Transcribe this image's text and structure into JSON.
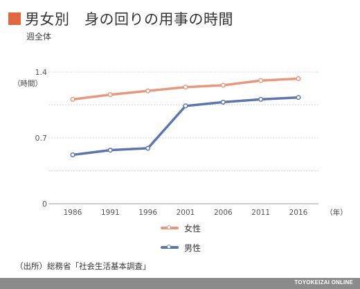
{
  "header": {
    "title": "男女別　身の回りの用事の時間",
    "subtitle": "週全体",
    "accent_color": "#e0673f"
  },
  "source_note": "（出所）総務省「社会生活基本調査」",
  "footer": {
    "brand": "TOYOKEIZAI ONLINE"
  },
  "chart_data": {
    "type": "line",
    "x": [
      "1986",
      "1991",
      "1996",
      "2001",
      "2006",
      "2011",
      "2016"
    ],
    "ylabel": "（時間）",
    "xlabel": "（年）",
    "ylim": [
      0,
      1.4
    ],
    "yticks": [
      "0",
      "0.7",
      "1.4"
    ],
    "grid": true,
    "legend_position": "bottom-center",
    "series": [
      {
        "name": "女性",
        "color": "#e9977a",
        "values": [
          1.11,
          1.16,
          1.2,
          1.24,
          1.26,
          1.31,
          1.33
        ]
      },
      {
        "name": "男性",
        "color": "#5b75b0",
        "values": [
          0.52,
          0.57,
          0.59,
          1.04,
          1.08,
          1.11,
          1.13
        ]
      }
    ]
  }
}
